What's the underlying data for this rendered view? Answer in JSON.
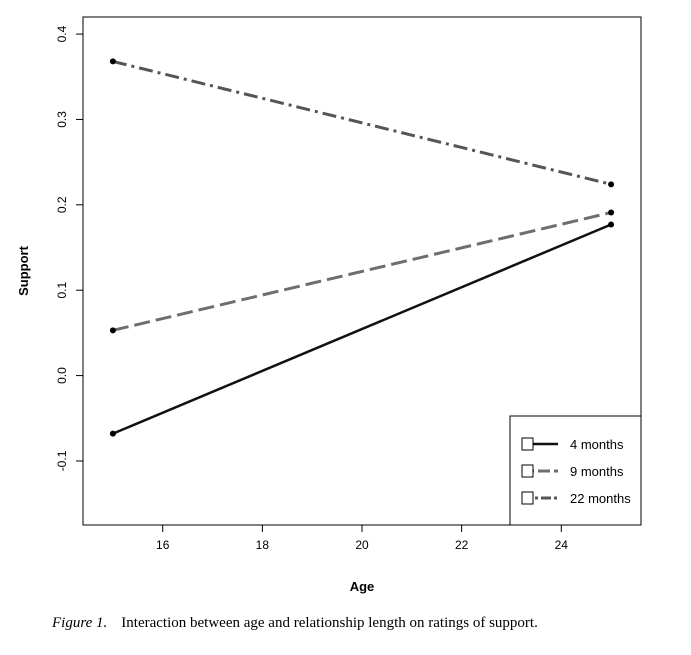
{
  "chart_data": {
    "type": "line",
    "title": "",
    "xlabel": "Age",
    "ylabel": "Support",
    "x": [
      15,
      25
    ],
    "xlim": [
      14.4,
      25.6
    ],
    "ylim": [
      -0.175,
      0.42
    ],
    "x_ticks": [
      "16",
      "18",
      "20",
      "22",
      "24"
    ],
    "y_ticks": [
      "-0.1",
      "0.0",
      "0.1",
      "0.2",
      "0.3",
      "0.4"
    ],
    "x_tick_values": [
      16,
      18,
      20,
      22,
      24
    ],
    "y_tick_values": [
      -0.1,
      0.0,
      0.1,
      0.2,
      0.3,
      0.4
    ],
    "grid": false,
    "legend_position": "bottom-right",
    "series": [
      {
        "name": "4 months",
        "values": [
          -0.068,
          0.177
        ],
        "color": "#111111",
        "style": "solid"
      },
      {
        "name": "9 months",
        "values": [
          0.053,
          0.191
        ],
        "color": "#6e6e6e",
        "style": "dashed"
      },
      {
        "name": "22 months",
        "values": [
          0.368,
          0.224
        ],
        "color": "#555555",
        "style": "dashdot"
      }
    ]
  },
  "caption": {
    "label": "Figure 1.",
    "text": "Interaction between age and relationship length on ratings of support."
  }
}
